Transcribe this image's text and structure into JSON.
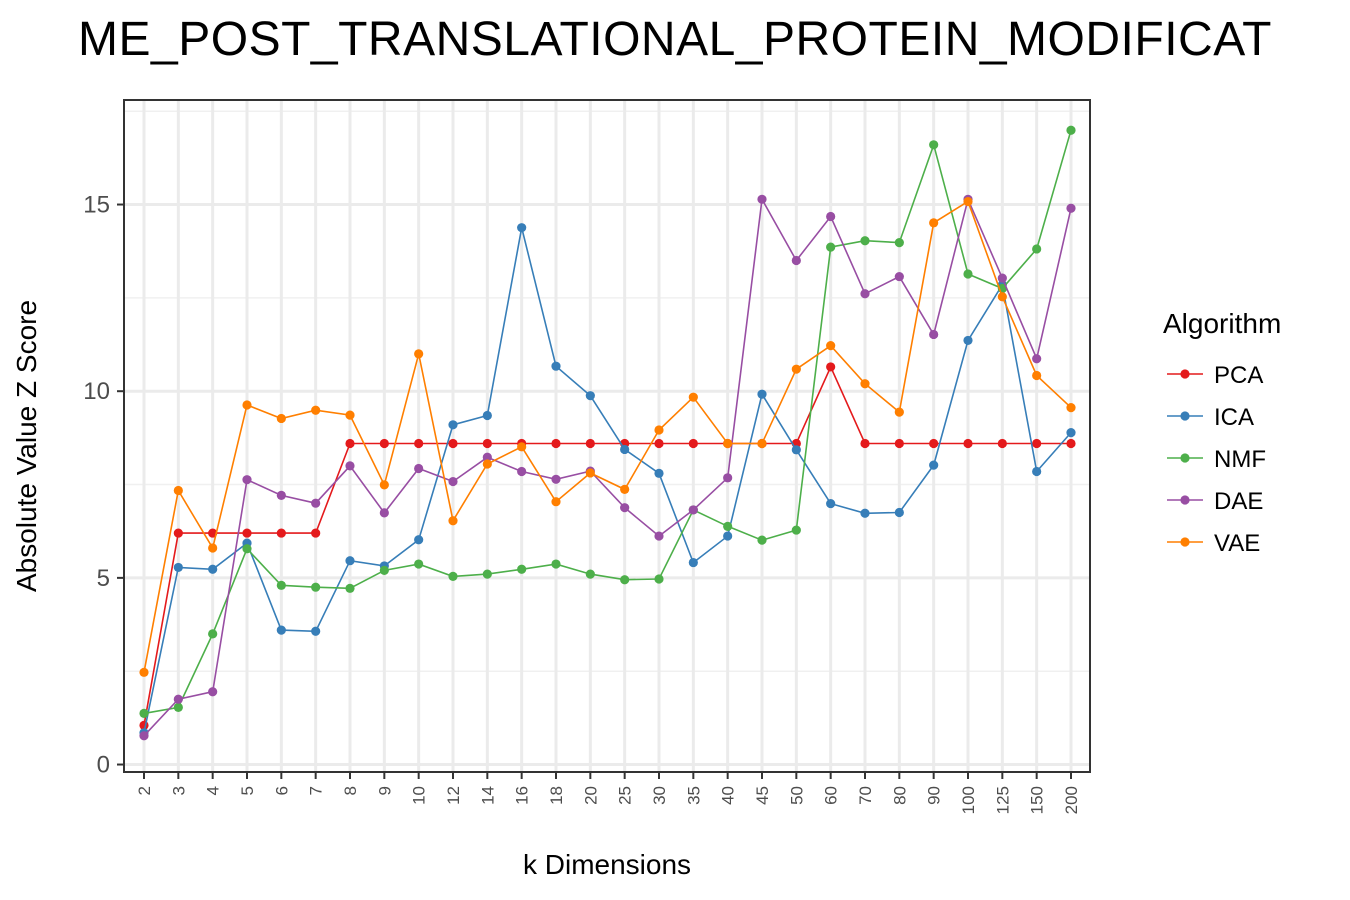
{
  "chart_data": {
    "type": "line",
    "title": "ME_POST_TRANSLATIONAL_PROTEIN_MODIFICAT",
    "xlabel": "k Dimensions",
    "ylabel": "Absolute Value Z Score",
    "categories": [
      "2",
      "3",
      "4",
      "5",
      "6",
      "7",
      "8",
      "9",
      "10",
      "12",
      "14",
      "16",
      "18",
      "20",
      "25",
      "30",
      "35",
      "40",
      "45",
      "50",
      "60",
      "70",
      "80",
      "90",
      "100",
      "125",
      "150",
      "200"
    ],
    "y_ticks": [
      0,
      5,
      10,
      15
    ],
    "ylim": [
      -0.2,
      17.8
    ],
    "grid": true,
    "legend": {
      "title": "Algorithm",
      "placement": "right"
    },
    "series": [
      {
        "name": "PCA",
        "color": "#e41a1c",
        "values": [
          1.05,
          6.2,
          6.2,
          6.2,
          6.2,
          6.2,
          8.6,
          8.6,
          8.6,
          8.6,
          8.6,
          8.6,
          8.6,
          8.6,
          8.6,
          8.6,
          8.6,
          8.6,
          8.6,
          8.6,
          10.65,
          8.6,
          8.6,
          8.6,
          8.6,
          8.6,
          8.6,
          8.6
        ]
      },
      {
        "name": "ICA",
        "color": "#377eb8",
        "values": [
          0.85,
          5.28,
          5.23,
          5.93,
          3.6,
          3.57,
          5.46,
          5.32,
          6.02,
          9.1,
          9.35,
          14.38,
          10.67,
          9.88,
          8.44,
          7.8,
          5.41,
          6.12,
          9.92,
          8.43,
          6.99,
          6.73,
          6.75,
          8.02,
          11.36,
          12.85,
          7.85,
          8.89
        ]
      },
      {
        "name": "NMF",
        "color": "#4daf4a",
        "values": [
          1.37,
          1.53,
          3.5,
          5.78,
          4.8,
          4.75,
          4.72,
          5.2,
          5.37,
          5.04,
          5.1,
          5.23,
          5.37,
          5.1,
          4.95,
          4.97,
          6.82,
          6.38,
          6.01,
          6.28,
          13.86,
          14.03,
          13.98,
          16.6,
          13.14,
          12.75,
          13.81,
          16.99
        ]
      },
      {
        "name": "DAE",
        "color": "#984ea3",
        "values": [
          0.77,
          1.75,
          1.95,
          7.63,
          7.21,
          7.0,
          8.0,
          6.74,
          7.93,
          7.58,
          8.23,
          7.85,
          7.64,
          7.86,
          6.88,
          6.12,
          6.82,
          7.68,
          15.14,
          13.5,
          14.68,
          12.61,
          13.07,
          11.52,
          15.14,
          13.03,
          10.87,
          14.9
        ]
      },
      {
        "name": "VAE",
        "color": "#ff7f00",
        "values": [
          2.47,
          7.34,
          5.8,
          9.63,
          9.27,
          9.49,
          9.36,
          7.49,
          11.0,
          6.53,
          8.05,
          8.51,
          7.04,
          7.81,
          7.37,
          8.96,
          9.84,
          8.6,
          8.6,
          10.59,
          11.22,
          10.2,
          9.44,
          14.51,
          15.08,
          12.53,
          10.42,
          9.56
        ]
      }
    ]
  }
}
